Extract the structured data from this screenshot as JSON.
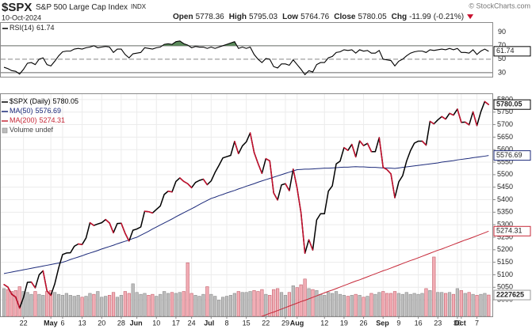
{
  "header": {
    "symbol": "$SPX",
    "name": "S&P 500 Large Cap Index",
    "exchange": "INDX",
    "date": "10-Oct-2024",
    "quote": [
      {
        "label": "Open",
        "value": 5778.36
      },
      {
        "label": "High",
        "value": 5795.03
      },
      {
        "label": "Low",
        "value": 5764.76
      },
      {
        "label": "Close",
        "value": 5780.05
      },
      {
        "label": "Chg",
        "value": -11.99,
        "pct": "(-0.21%)"
      }
    ],
    "credit": "© StockCharts.com"
  },
  "chart_data": [
    {
      "type": "line",
      "ylim": [
        24,
        105
      ],
      "yticks": [
        90,
        70,
        50,
        30
      ],
      "overbought": 70,
      "oversold": 30,
      "centerline": 50,
      "fill_color": "#5b8a5b",
      "series": [
        {
          "name": "RSI(14)",
          "color": "#000000",
          "values": [
            38,
            36,
            33,
            32,
            28,
            35,
            44,
            45,
            42,
            50,
            52,
            42,
            40,
            47,
            55,
            61,
            62,
            62,
            65,
            66,
            65,
            67,
            68,
            70,
            67,
            68,
            69,
            68,
            60,
            65,
            65,
            57,
            52,
            58,
            59,
            60,
            67,
            66,
            65,
            67,
            68,
            72,
            73,
            72,
            76,
            77,
            73,
            71,
            67,
            69,
            68,
            68,
            66,
            68,
            66,
            68,
            70,
            72,
            74,
            76,
            66,
            68,
            66,
            68,
            57,
            50,
            45,
            51,
            50,
            39,
            37,
            43,
            43,
            41,
            49,
            42,
            35,
            27,
            33,
            31,
            42,
            45,
            45,
            52,
            54,
            60,
            61,
            64,
            63,
            64,
            59,
            64,
            62,
            63,
            59,
            59,
            63,
            50,
            49,
            48,
            40,
            47,
            50,
            55,
            59,
            61,
            62,
            62,
            60,
            64,
            63,
            64,
            65,
            64,
            66,
            64,
            66,
            60,
            60,
            59,
            64,
            57,
            62,
            65,
            61.74
          ]
        }
      ]
    },
    {
      "type": "line",
      "ylim": [
        4934,
        5825
      ],
      "yticks": [
        5000,
        5050,
        5100,
        5150,
        5200,
        5250,
        5300,
        5350,
        5400,
        5450,
        5500,
        5550,
        5600,
        5650,
        5700,
        5750,
        5800
      ],
      "y2lim": [
        0,
        23300000
      ],
      "grid": true,
      "categories": [
        null,
        null,
        null,
        null,
        null,
        "22",
        null,
        null,
        null,
        null,
        null,
        null,
        "May",
        null,
        null,
        "6",
        null,
        null,
        null,
        null,
        "13",
        null,
        null,
        null,
        null,
        "20",
        null,
        null,
        null,
        null,
        "28",
        null,
        null,
        null,
        "Jun",
        null,
        null,
        null,
        null,
        "10",
        null,
        null,
        null,
        null,
        "17",
        null,
        null,
        null,
        "24",
        null,
        null,
        null,
        null,
        "Jul",
        null,
        null,
        null,
        "8",
        null,
        null,
        null,
        null,
        "15",
        null,
        null,
        null,
        null,
        "22",
        null,
        null,
        null,
        null,
        "29",
        null,
        null,
        "Aug",
        null,
        null,
        null,
        null,
        null,
        null,
        "12",
        null,
        null,
        null,
        null,
        "19",
        null,
        null,
        null,
        null,
        "26",
        null,
        null,
        null,
        null,
        "Sep",
        null,
        null,
        null,
        "9",
        null,
        null,
        null,
        null,
        "16",
        null,
        null,
        null,
        null,
        "23",
        null,
        null,
        null,
        null,
        "30",
        "Oct",
        null,
        null,
        null,
        "7",
        null,
        null,
        null
      ],
      "series": [
        {
          "name": "$SPX (Daily)",
          "color": "#000000",
          "down_color": "#c8102e",
          "values": [
            5061,
            5051,
            5022,
            5011,
            4967,
            5010,
            5070,
            5071,
            5048,
            5100,
            5116,
            5036,
            5018,
            5064,
            5128,
            5181,
            5187,
            5188,
            5214,
            5223,
            5221,
            5247,
            5308,
            5297,
            5303,
            5308,
            5321,
            5307,
            5268,
            5305,
            5306,
            5266,
            5235,
            5278,
            5283,
            5291,
            5354,
            5352,
            5347,
            5361,
            5375,
            5421,
            5434,
            5431,
            5473,
            5487,
            5473,
            5464,
            5448,
            5469,
            5477,
            5482,
            5460,
            5475,
            5509,
            5537,
            5567,
            5572,
            5577,
            5633,
            5584,
            5615,
            5631,
            5667,
            5589,
            5545,
            5505,
            5564,
            5555,
            5427,
            5399,
            5459,
            5464,
            5436,
            5522,
            5446,
            5347,
            5186,
            5240,
            5199,
            5319,
            5344,
            5344,
            5434,
            5455,
            5543,
            5554,
            5608,
            5597,
            5621,
            5571,
            5635,
            5616,
            5625,
            5592,
            5592,
            5648,
            5529,
            5520,
            5503,
            5408,
            5471,
            5496,
            5554,
            5596,
            5626,
            5634,
            5634,
            5618,
            5713,
            5703,
            5719,
            5732,
            5722,
            5745,
            5738,
            5762,
            5709,
            5710,
            5699,
            5751,
            5696,
            5751,
            5792,
            5780.05
          ]
        },
        {
          "name": "MA(50)",
          "color": "#1c2a7a",
          "values": [
            5105,
            5108,
            5111,
            5114,
            5117,
            5120,
            5123,
            5126,
            5129,
            5132,
            5135,
            5138,
            5141,
            5144,
            5147,
            5150,
            5155,
            5161,
            5166,
            5171,
            5176,
            5182,
            5187,
            5192,
            5197,
            5203,
            5208,
            5213,
            5218,
            5224,
            5229,
            5234,
            5239,
            5245,
            5250,
            5258,
            5266,
            5274,
            5283,
            5291,
            5299,
            5307,
            5315,
            5323,
            5332,
            5340,
            5348,
            5356,
            5364,
            5372,
            5381,
            5389,
            5397,
            5405,
            5410,
            5416,
            5421,
            5427,
            5432,
            5437,
            5443,
            5448,
            5454,
            5459,
            5464,
            5470,
            5475,
            5480,
            5485,
            5490,
            5495,
            5500,
            5505,
            5510,
            5515,
            5520,
            5521,
            5522,
            5522,
            5523,
            5524,
            5525,
            5526,
            5526,
            5527,
            5528,
            5529,
            5530,
            5530,
            5531,
            5532,
            5531,
            5531,
            5530,
            5529,
            5529,
            5528,
            5527,
            5527,
            5526,
            5525,
            5527,
            5529,
            5531,
            5533,
            5535,
            5537,
            5539,
            5541,
            5543,
            5545,
            5547,
            5550,
            5552,
            5554,
            5556,
            5559,
            5561,
            5563,
            5565,
            5568,
            5570,
            5572,
            5574,
            5576.69
          ]
        },
        {
          "name": "MA(200)",
          "color": "#c62838",
          "values": [
            null,
            null,
            null,
            null,
            null,
            null,
            null,
            null,
            null,
            null,
            null,
            null,
            null,
            null,
            null,
            null,
            null,
            null,
            null,
            null,
            null,
            null,
            null,
            null,
            null,
            null,
            null,
            null,
            null,
            null,
            null,
            null,
            null,
            null,
            null,
            null,
            null,
            null,
            null,
            null,
            null,
            null,
            null,
            null,
            null,
            null,
            null,
            null,
            null,
            null,
            null,
            null,
            null,
            null,
            null,
            null,
            null,
            null,
            null,
            null,
            null,
            null,
            null,
            null,
            null,
            4928,
            4934,
            4940,
            4946,
            4951,
            4957,
            4963,
            4969,
            4975,
            4981,
            4987,
            4993,
            4998,
            5004,
            5010,
            5016,
            5022,
            5028,
            5034,
            5039,
            5045,
            5051,
            5057,
            5063,
            5069,
            5075,
            5080,
            5086,
            5092,
            5098,
            5104,
            5110,
            5116,
            5121,
            5127,
            5133,
            5139,
            5145,
            5151,
            5157,
            5162,
            5168,
            5174,
            5180,
            5186,
            5192,
            5198,
            5203,
            5209,
            5215,
            5221,
            5227,
            5233,
            5239,
            5244,
            5250,
            5256,
            5262,
            5268,
            5274.31
          ]
        },
        {
          "name": "Volume undef",
          "type": "bar",
          "axis": "y2",
          "color": "#bdbdbd",
          "down_color": "#f2adb5",
          "values": [
            2900000,
            2800000,
            2600000,
            2700000,
            3100000,
            2600000,
            2500000,
            2300000,
            2600000,
            2300000,
            2200000,
            2600000,
            2700000,
            2500000,
            2300000,
            2200000,
            2400000,
            2200000,
            2100000,
            2200000,
            2000000,
            2100000,
            2400000,
            2300000,
            2600000,
            2000000,
            2100000,
            2200000,
            2500000,
            2000000,
            2200000,
            2600000,
            2400000,
            3400000,
            2500000,
            2300000,
            2400000,
            2200000,
            2300000,
            2100000,
            2300000,
            2600000,
            2400000,
            2500000,
            2400000,
            2500000,
            2600000,
            5600000,
            2400000,
            2200000,
            2100000,
            2300000,
            3100000,
            2300000,
            2100000,
            1700000,
            2000000,
            2100000,
            2200000,
            2400000,
            2600000,
            2500000,
            2500000,
            2600000,
            2700000,
            2600000,
            2800000,
            2300000,
            2200000,
            2800000,
            2900000,
            2500000,
            2200000,
            2500000,
            3200000,
            3000000,
            3300000,
            3900000,
            2900000,
            2800000,
            2700000,
            2300000,
            2200000,
            2500000,
            2400000,
            2600000,
            2300000,
            2200000,
            2100000,
            2200000,
            2300000,
            2200000,
            2000000,
            2100000,
            2400000,
            2300000,
            2500000,
            2600000,
            2400000,
            2400000,
            2600000,
            2400000,
            2300000,
            2500000,
            2300000,
            2400000,
            2300000,
            2400000,
            2900000,
            2700000,
            6200000,
            2500000,
            2500000,
            2400000,
            2500000,
            2300000,
            2900000,
            2700000,
            2400000,
            2500000,
            2300000,
            2200000,
            2300000,
            2400000,
            2227625
          ]
        }
      ]
    }
  ]
}
